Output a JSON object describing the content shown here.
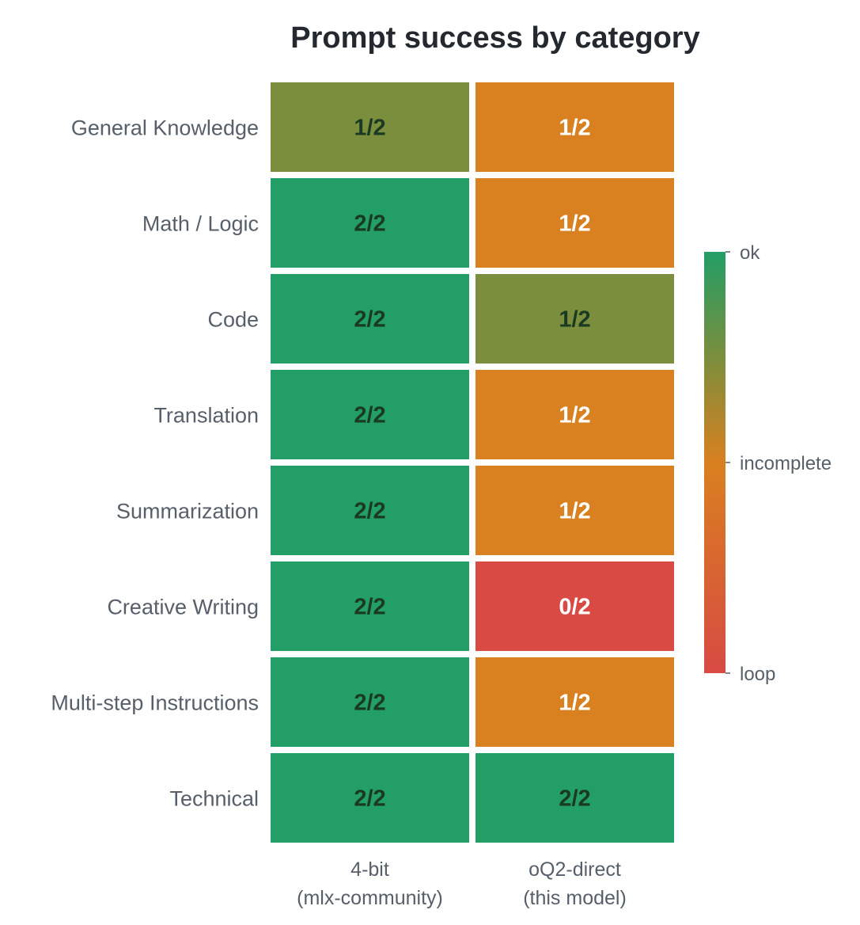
{
  "chart_data": {
    "type": "heatmap",
    "title": "Prompt success by category",
    "rows": [
      "General Knowledge",
      "Math / Logic",
      "Code",
      "Translation",
      "Summarization",
      "Creative Writing",
      "Multi-step Instructions",
      "Technical"
    ],
    "columns": [
      {
        "line1": "4-bit",
        "line2": "(mlx-community)"
      },
      {
        "line1": "oQ2-direct",
        "line2": "(this model)"
      }
    ],
    "cells": [
      [
        {
          "text": "1/2",
          "score": 0.75
        },
        {
          "text": "1/2",
          "score": 0.5
        }
      ],
      [
        {
          "text": "2/2",
          "score": 1.0
        },
        {
          "text": "1/2",
          "score": 0.5
        }
      ],
      [
        {
          "text": "2/2",
          "score": 1.0
        },
        {
          "text": "1/2",
          "score": 0.75
        }
      ],
      [
        {
          "text": "2/2",
          "score": 1.0
        },
        {
          "text": "1/2",
          "score": 0.5
        }
      ],
      [
        {
          "text": "2/2",
          "score": 1.0
        },
        {
          "text": "1/2",
          "score": 0.5
        }
      ],
      [
        {
          "text": "2/2",
          "score": 1.0
        },
        {
          "text": "0/2",
          "score": 0.0
        }
      ],
      [
        {
          "text": "2/2",
          "score": 1.0
        },
        {
          "text": "1/2",
          "score": 0.5
        }
      ],
      [
        {
          "text": "2/2",
          "score": 1.0
        },
        {
          "text": "2/2",
          "score": 1.0
        }
      ]
    ],
    "colorbar": {
      "range": [
        0,
        1
      ],
      "ticks": [
        {
          "label": "ok",
          "value": 1.0
        },
        {
          "label": "incomplete",
          "value": 0.5
        },
        {
          "label": "loop",
          "value": 0.0
        }
      ],
      "colors": {
        "ok": "#229e66",
        "mid_ok": "#7b8e3d",
        "incomplete": "#d98020",
        "loop": "#d84a43"
      }
    },
    "text_colors": {
      "dark": "#1a3a22",
      "light": "#ffffff"
    }
  }
}
